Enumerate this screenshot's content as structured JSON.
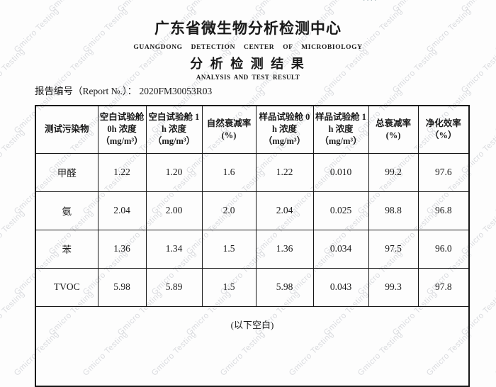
{
  "watermark": {
    "text": "Gmicro Testing",
    "color": "#d4d6da"
  },
  "top_mark": "····",
  "header": {
    "org_cn": "广东省微生物分析检测中心",
    "org_en": "GUANGDONG  DETECTION  CENTER  OF  MICROBIOLOGY",
    "doc_title_cn": "分 析 检 测 结 果",
    "doc_title_en": "ANALYSIS AND TEST RESULT",
    "report_no_label": "报告编号（Report №.）：",
    "report_no": "2020FM30053R03"
  },
  "table": {
    "columns": [
      {
        "label": "测试污染物",
        "unit": ""
      },
      {
        "label": "空白试验舱0h 浓度",
        "unit": "（mg/m³）"
      },
      {
        "label": "空白试验舱 1h 浓度",
        "unit": "（mg/m³）"
      },
      {
        "label": "自然衰减率",
        "unit": "(%)"
      },
      {
        "label": "样品试验舱 0h 浓度",
        "unit": "（mg/m³）"
      },
      {
        "label": "样品试验舱 1h 浓度",
        "unit": "（mg/m³）"
      },
      {
        "label": "总衰减率",
        "unit": "(%)"
      },
      {
        "label": "净化效率",
        "unit": "（%）"
      }
    ],
    "rows": [
      {
        "pollutant": "甲醛",
        "values": [
          "1.22",
          "1.20",
          "1.6",
          "1.22",
          "0.010",
          "99.2",
          "97.6"
        ]
      },
      {
        "pollutant": "氨",
        "values": [
          "2.04",
          "2.00",
          "2.0",
          "2.04",
          "0.025",
          "98.8",
          "96.8"
        ]
      },
      {
        "pollutant": "苯",
        "values": [
          "1.36",
          "1.34",
          "1.5",
          "1.36",
          "0.034",
          "97.5",
          "96.0"
        ]
      },
      {
        "pollutant": "TVOC",
        "values": [
          "5.98",
          "5.89",
          "1.5",
          "5.98",
          "0.043",
          "99.3",
          "97.8"
        ]
      }
    ],
    "footer": "(以下空白)"
  }
}
